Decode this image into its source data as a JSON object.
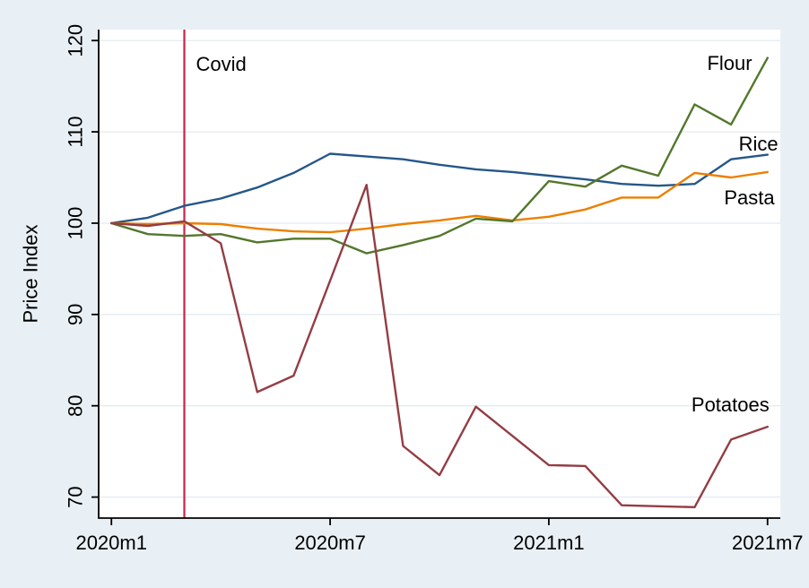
{
  "chart_data": {
    "type": "line",
    "title": "",
    "xlabel": "",
    "ylabel": "Price Index",
    "grid": true,
    "legend_position": "end-of-line-labels",
    "background_color": "#e9f0f5",
    "plot_background_color": "#ffffff",
    "gridline_color": "#e3ebf2",
    "axis_color": "#000000",
    "xlim": [
      -0.35,
      18.35
    ],
    "ylim": [
      67.7,
      121.2
    ],
    "y_ticks": [
      70,
      80,
      90,
      100,
      110,
      120
    ],
    "x_ticks": [
      {
        "pos": 0,
        "label": "2020m1"
      },
      {
        "pos": 6,
        "label": "2020m7"
      },
      {
        "pos": 12,
        "label": "2021m1"
      },
      {
        "pos": 18,
        "label": "2021m7"
      }
    ],
    "categories": [
      "2020m1",
      "2020m2",
      "2020m3",
      "2020m4",
      "2020m5",
      "2020m6",
      "2020m7",
      "2020m8",
      "2020m9",
      "2020m10",
      "2020m11",
      "2020m12",
      "2021m1",
      "2021m2",
      "2021m3",
      "2021m4",
      "2021m5",
      "2021m6",
      "2021m7"
    ],
    "series": [
      {
        "name": "Rice",
        "color": "#24578a",
        "values": [
          100,
          100.6,
          101.9,
          102.7,
          103.9,
          105.5,
          107.6,
          107.3,
          107.0,
          106.4,
          105.9,
          105.6,
          105.2,
          104.8,
          104.3,
          104.1,
          104.3,
          107.0,
          107.5
        ],
        "label": {
          "text": "Rice",
          "x": 17.75,
          "y": 108.7
        }
      },
      {
        "name": "Pasta",
        "color": "#ec7f00",
        "values": [
          100,
          99.9,
          100.0,
          99.9,
          99.4,
          99.1,
          99.0,
          99.4,
          99.9,
          100.3,
          100.8,
          100.3,
          100.7,
          101.5,
          102.8,
          102.8,
          105.5,
          105.0,
          105.6
        ],
        "label": {
          "text": "Pasta",
          "x": 17.5,
          "y": 102.8
        }
      },
      {
        "name": "Flour",
        "color": "#53772c",
        "values": [
          100,
          98.8,
          98.6,
          98.8,
          97.9,
          98.3,
          98.3,
          96.7,
          97.6,
          98.6,
          100.5,
          100.2,
          104.6,
          104.0,
          106.3,
          105.2,
          113.0,
          110.8,
          118.1
        ],
        "label": {
          "text": "Flour",
          "x": 16.96,
          "y": 117.5
        }
      },
      {
        "name": "Potatoes",
        "color": "#943d44",
        "values": [
          100,
          99.7,
          100.2,
          97.8,
          81.5,
          83.3,
          93.7,
          104.2,
          75.6,
          72.4,
          79.9,
          76.7,
          73.5,
          73.4,
          69.1,
          69.0,
          68.9,
          76.3,
          77.7
        ],
        "label": {
          "text": "Potatoes",
          "x": 16.98,
          "y": 80.1
        }
      }
    ],
    "annotation_line": {
      "label": "Covid",
      "x": 2,
      "color": "#c9234a",
      "label_x": 2.32,
      "label_y": 117.4
    }
  }
}
